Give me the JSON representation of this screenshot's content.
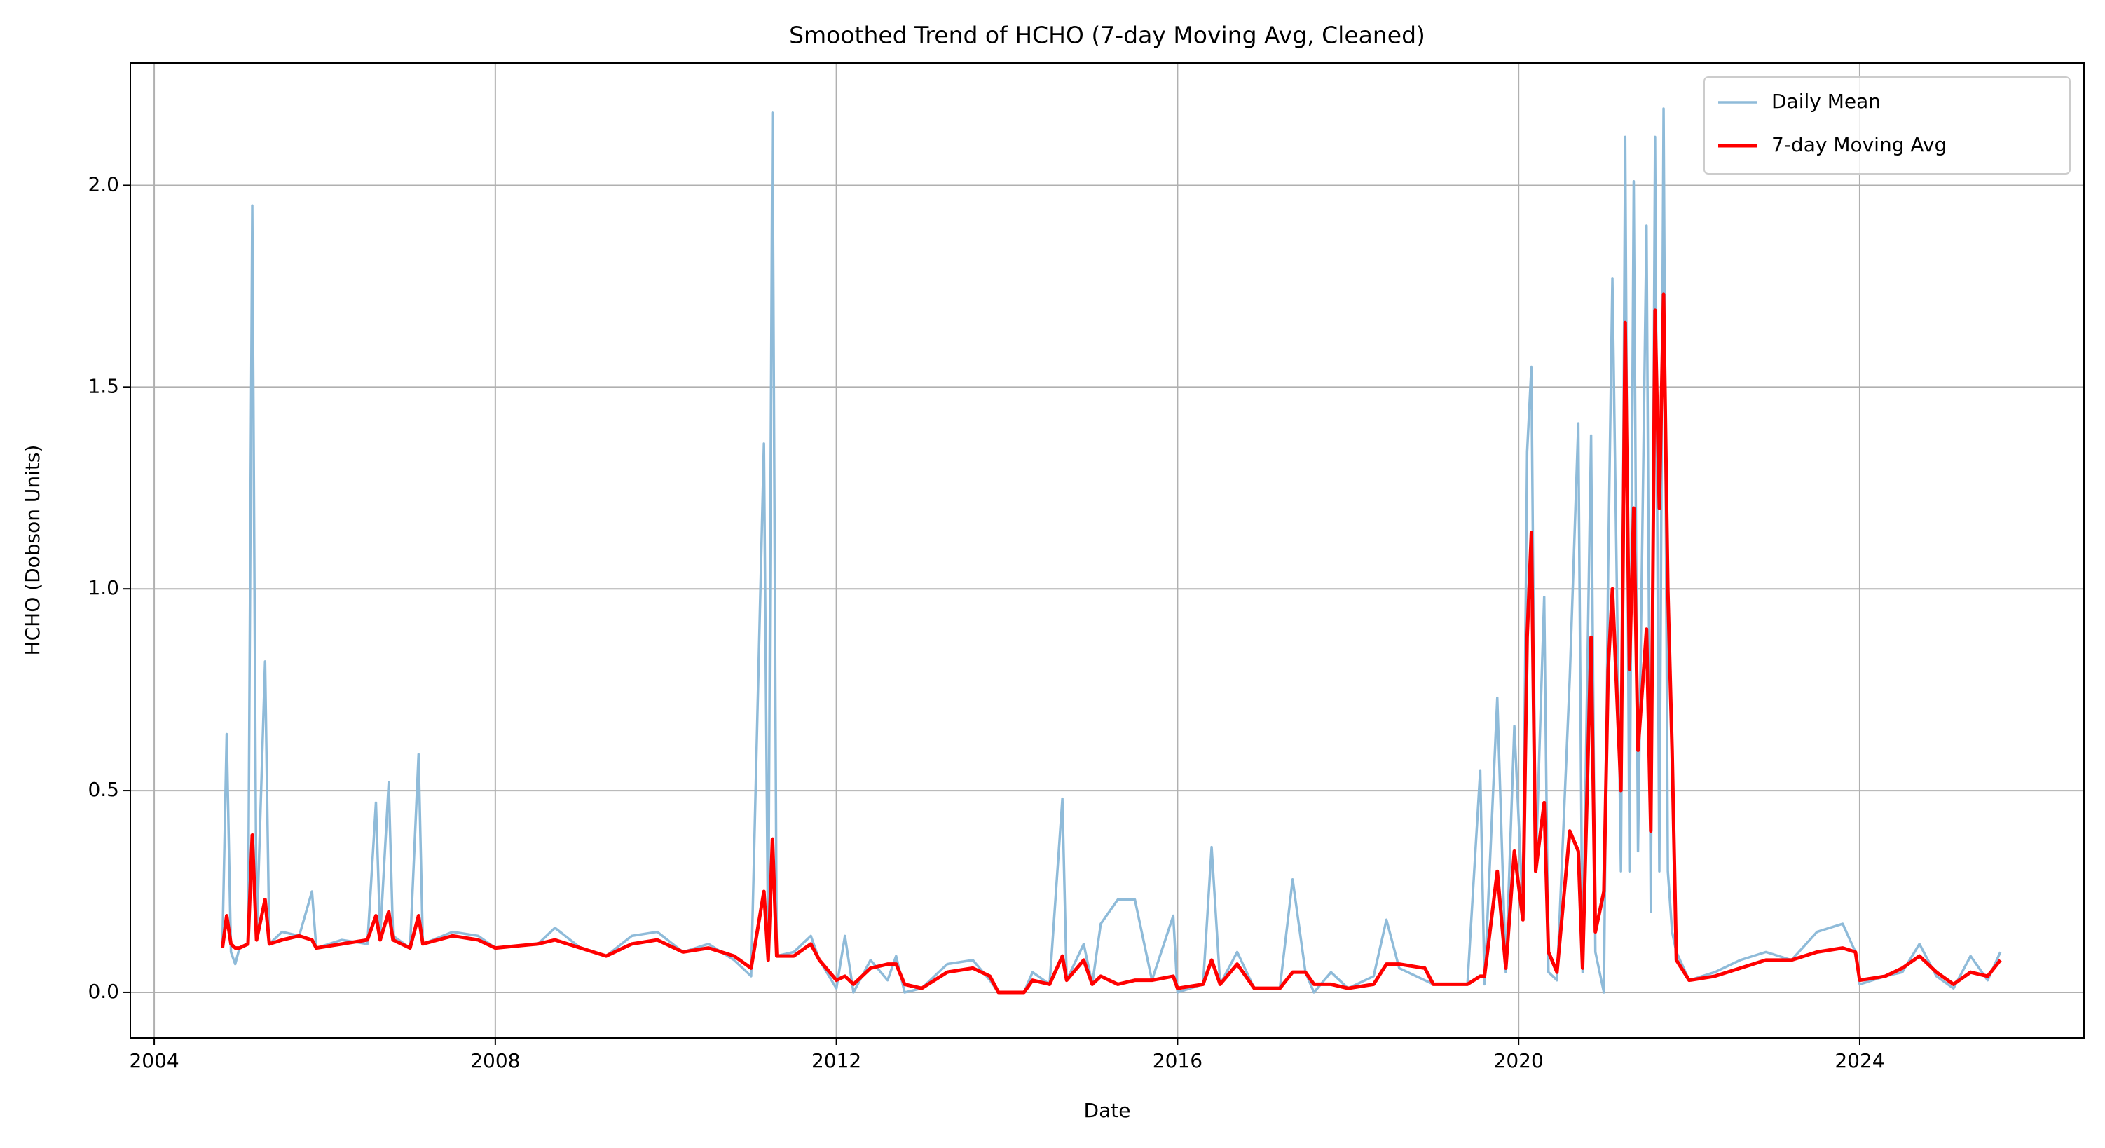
{
  "chart_data": {
    "type": "line",
    "title": "Smoothed Trend of HCHO (7-day Moving Avg, Cleaned)",
    "x_label": "Date",
    "y_label": "HCHO (Dobson Units)",
    "xlim": [
      2003.72,
      2026.63
    ],
    "ylim": [
      -0.113,
      2.303
    ],
    "xticks": [
      2004,
      2008,
      2012,
      2016,
      2020,
      2024
    ],
    "yticks": [
      {
        "value": 0,
        "label": "0.0"
      },
      0.5,
      {
        "value": 1,
        "label": "1.0"
      },
      1.5,
      {
        "value": 2,
        "label": "2.0"
      }
    ],
    "grid": true,
    "legend": "upper right",
    "x": [
      2004.8,
      2004.85,
      2004.9,
      2004.95,
      2005.0,
      2005.1,
      2005.15,
      2005.2,
      2005.3,
      2005.35,
      2005.5,
      2005.7,
      2005.85,
      2005.9,
      2006.2,
      2006.5,
      2006.6,
      2006.65,
      2006.75,
      2006.8,
      2007.0,
      2007.1,
      2007.15,
      2007.5,
      2007.8,
      2008.0,
      2008.5,
      2008.7,
      2009.0,
      2009.3,
      2009.6,
      2009.9,
      2010.2,
      2010.5,
      2010.8,
      2011.0,
      2011.15,
      2011.2,
      2011.25,
      2011.3,
      2011.5,
      2011.7,
      2011.8,
      2012.0,
      2012.1,
      2012.2,
      2012.4,
      2012.6,
      2012.7,
      2012.8,
      2013.0,
      2013.3,
      2013.6,
      2013.8,
      2013.9,
      2014.2,
      2014.3,
      2014.5,
      2014.65,
      2014.7,
      2014.9,
      2015.0,
      2015.1,
      2015.3,
      2015.5,
      2015.7,
      2015.95,
      2016.0,
      2016.3,
      2016.4,
      2016.5,
      2016.7,
      2016.9,
      2017.2,
      2017.35,
      2017.5,
      2017.6,
      2017.8,
      2018.0,
      2018.3,
      2018.45,
      2018.6,
      2018.9,
      2019.0,
      2019.4,
      2019.55,
      2019.6,
      2019.75,
      2019.85,
      2019.95,
      2020.05,
      2020.1,
      2020.15,
      2020.2,
      2020.3,
      2020.35,
      2020.45,
      2020.6,
      2020.7,
      2020.75,
      2020.85,
      2020.9,
      2021.0,
      2021.05,
      2021.1,
      2021.2,
      2021.25,
      2021.3,
      2021.35,
      2021.4,
      2021.5,
      2021.55,
      2021.6,
      2021.65,
      2021.7,
      2021.75,
      2021.8,
      2021.85,
      2022.0,
      2022.3,
      2022.6,
      2022.9,
      2023.2,
      2023.5,
      2023.8,
      2023.95,
      2024.0,
      2024.3,
      2024.5,
      2024.7,
      2024.9,
      2025.1,
      2025.3,
      2025.5,
      2025.65
    ],
    "series": [
      {
        "name": "Daily Mean",
        "color": "#8fbbd9",
        "width": 3.5,
        "values": [
          0.12,
          0.64,
          0.1,
          0.07,
          0.11,
          0.12,
          1.95,
          0.13,
          0.82,
          0.12,
          0.15,
          0.14,
          0.25,
          0.11,
          0.13,
          0.12,
          0.47,
          0.14,
          0.52,
          0.14,
          0.11,
          0.59,
          0.12,
          0.15,
          0.14,
          0.11,
          0.12,
          0.16,
          0.11,
          0.09,
          0.14,
          0.15,
          0.1,
          0.12,
          0.08,
          0.04,
          1.36,
          0.08,
          2.18,
          0.09,
          0.1,
          0.14,
          0.08,
          0.01,
          0.14,
          0.0,
          0.08,
          0.03,
          0.09,
          0.0,
          0.01,
          0.07,
          0.08,
          0.03,
          0.0,
          0.0,
          0.05,
          0.02,
          0.48,
          0.03,
          0.12,
          0.02,
          0.17,
          0.23,
          0.23,
          0.03,
          0.19,
          0.0,
          0.02,
          0.36,
          0.02,
          0.1,
          0.01,
          0.01,
          0.28,
          0.05,
          0.0,
          0.05,
          0.01,
          0.04,
          0.18,
          0.06,
          0.03,
          0.02,
          0.02,
          0.55,
          0.02,
          0.73,
          0.05,
          0.66,
          0.2,
          1.34,
          1.55,
          0.3,
          0.98,
          0.05,
          0.03,
          0.78,
          1.41,
          0.05,
          1.38,
          0.1,
          0.0,
          1.05,
          1.77,
          0.3,
          2.12,
          0.3,
          2.01,
          0.35,
          1.9,
          0.2,
          2.12,
          0.3,
          2.19,
          0.3,
          0.15,
          0.1,
          0.03,
          0.05,
          0.08,
          0.1,
          0.08,
          0.15,
          0.17,
          0.1,
          0.02,
          0.04,
          0.05,
          0.12,
          0.04,
          0.01,
          0.09,
          0.03,
          0.1
        ]
      },
      {
        "name": "7-day Moving Avg",
        "color": "#ff0000",
        "width": 5,
        "values": [
          0.11,
          0.19,
          0.12,
          0.11,
          0.11,
          0.12,
          0.39,
          0.13,
          0.23,
          0.12,
          0.13,
          0.14,
          0.13,
          0.11,
          0.12,
          0.13,
          0.19,
          0.13,
          0.2,
          0.13,
          0.11,
          0.19,
          0.12,
          0.14,
          0.13,
          0.11,
          0.12,
          0.13,
          0.11,
          0.09,
          0.12,
          0.13,
          0.1,
          0.11,
          0.09,
          0.06,
          0.25,
          0.08,
          0.38,
          0.09,
          0.09,
          0.12,
          0.08,
          0.03,
          0.04,
          0.02,
          0.06,
          0.07,
          0.07,
          0.02,
          0.01,
          0.05,
          0.06,
          0.04,
          0.0,
          0.0,
          0.03,
          0.02,
          0.09,
          0.03,
          0.08,
          0.02,
          0.04,
          0.02,
          0.03,
          0.03,
          0.04,
          0.01,
          0.02,
          0.08,
          0.02,
          0.07,
          0.01,
          0.01,
          0.05,
          0.05,
          0.02,
          0.02,
          0.01,
          0.02,
          0.07,
          0.07,
          0.06,
          0.02,
          0.02,
          0.04,
          0.04,
          0.3,
          0.06,
          0.35,
          0.18,
          0.88,
          1.14,
          0.3,
          0.47,
          0.1,
          0.05,
          0.4,
          0.35,
          0.06,
          0.88,
          0.15,
          0.25,
          0.8,
          1.0,
          0.5,
          1.66,
          0.8,
          1.2,
          0.6,
          0.9,
          0.4,
          1.69,
          1.2,
          1.73,
          1.0,
          0.6,
          0.08,
          0.03,
          0.04,
          0.06,
          0.08,
          0.08,
          0.1,
          0.11,
          0.1,
          0.03,
          0.04,
          0.06,
          0.09,
          0.05,
          0.02,
          0.05,
          0.04,
          0.08
        ]
      }
    ]
  }
}
